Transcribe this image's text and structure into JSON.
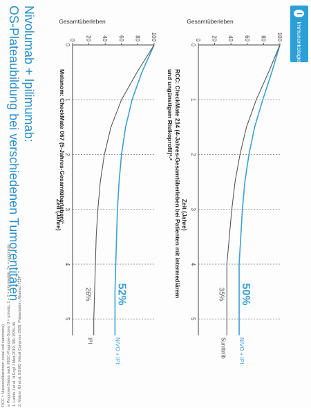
{
  "slide": {
    "title_line1": "Nivolumab + Ipilimumab:",
    "title_line2": "OS-Plateaubildung bei verschiedenen Tumorentitäten",
    "logo_label": "Immunonkologie"
  },
  "colors": {
    "accent": "#2a8fc8",
    "nivo_line": "#3aa0d6",
    "comparator_line": "#555555"
  },
  "chart_data": [
    {
      "type": "line",
      "title": "Melanom: CheckMate 067 (5-Jahres-Gesamtüberleben)¹",
      "ylabel": "Gesamtüberleben",
      "xlabel": "Zeit (Jahre)",
      "x_ticks": [
        "0",
        "1",
        "2",
        "3",
        "4",
        "5"
      ],
      "y_ticks": [
        "0",
        "20",
        "40",
        "60",
        "80",
        "100"
      ],
      "xlim": [
        0,
        5.3
      ],
      "ylim": [
        0,
        100
      ],
      "series": [
        {
          "name": "NIVO + IPI",
          "end_label": "52%",
          "x": [
            0,
            0.5,
            1,
            1.5,
            2,
            2.5,
            3,
            3.5,
            4,
            4.5,
            5,
            5.3
          ],
          "y": [
            100,
            85,
            73,
            65,
            60,
            57,
            55,
            54,
            53,
            52,
            52,
            52
          ]
        },
        {
          "name": "IPI",
          "end_label": "26%",
          "x": [
            0,
            0.5,
            1,
            1.5,
            2,
            2.5,
            3,
            3.5,
            4,
            4.5,
            5,
            5.3
          ],
          "y": [
            100,
            79,
            60,
            47,
            39,
            34,
            31,
            29,
            28,
            27,
            26,
            26
          ]
        }
      ]
    },
    {
      "type": "line",
      "title_line1": "RCC: CheckMate 214 (4-Jahres-Gesamtüberleben bei Patienten mit intermediärem",
      "title_line2": "und ungünstigem Risikoprofil)²·³",
      "ylabel": "Gesamtüberleben",
      "xlabel": "Zeit (Jahre)",
      "x_ticks": [
        "0",
        "1",
        "2",
        "3",
        "4",
        "5"
      ],
      "y_ticks": [
        "0",
        "20",
        "40",
        "60",
        "80",
        "100"
      ],
      "xlim": [
        0,
        5.3
      ],
      "ylim": [
        0,
        100
      ],
      "series": [
        {
          "name": "NIVO + IPI",
          "end_label": "50%",
          "x": [
            0,
            0.5,
            1,
            1.5,
            2,
            2.5,
            3,
            3.5,
            4,
            4.5,
            5,
            5.3
          ],
          "y": [
            100,
            90,
            79,
            69,
            62,
            57,
            54,
            52,
            50,
            50,
            50,
            50
          ]
        },
        {
          "name": "Sunitinib",
          "end_label": "35%",
          "x": [
            0,
            0.5,
            1,
            1.5,
            2,
            2.5,
            3,
            3.5,
            4,
            4.5,
            5,
            5.3
          ],
          "y": [
            100,
            86,
            71,
            59,
            51,
            45,
            41,
            38,
            35,
            35,
            35,
            35
          ]
        }
      ]
    }
  ],
  "footnotes": [
    "RCC = Nierenzellkarzinom (renal cell carcinoma)",
    "a Prognose-Status nach IMDC-Prognose-Score: 0 = günstig, 1 – 2 = intermediär, 3+ = ungünstig",
    "1. Larkin J et al. N Engl J Med 2019; 381:1535–46",
    "2. Motzer RJ et al. ESMO Virtual Congress 2020; Präsentation, Abstract 711P"
  ]
}
